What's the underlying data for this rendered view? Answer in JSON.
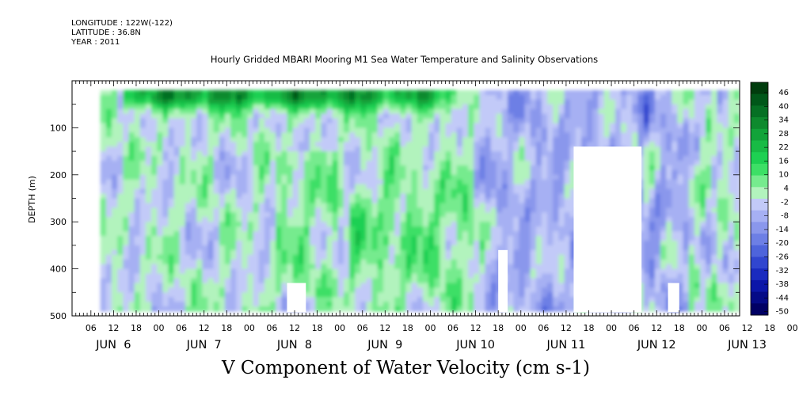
{
  "header": {
    "longitude": "LONGITUDE : 122W(-122)",
    "latitude": "LATITUDE : 36.8N",
    "year": "YEAR : 2011"
  },
  "title": "Hourly Gridded MBARI Mooring M1 Sea Water Temperature and Salinity Observations",
  "bottom_title": "V Component of Water Velocity (cm s-1)",
  "chart_data": {
    "type": "heatmap",
    "title": "Hourly Gridded MBARI Mooring M1 Sea Water Temperature and Salinity Observations",
    "xlabel": "",
    "ylabel": "DEPTH (m)",
    "colorbar_label": "V Component of Water Velocity (cm s-1)",
    "x_hour_ticks": [
      "06",
      "12",
      "18",
      "00",
      "06",
      "12",
      "18",
      "00",
      "06",
      "12",
      "18",
      "00",
      "06",
      "12",
      "18",
      "00",
      "06",
      "12",
      "18",
      "00",
      "06",
      "12",
      "18",
      "00",
      "06",
      "12",
      "18",
      "00",
      "06",
      "12",
      "18",
      "00"
    ],
    "x_day_labels": [
      "JUN  6",
      "JUN  7",
      "JUN  8",
      "JUN  9",
      "JUN 10",
      "JUN 11",
      "JUN 12",
      "JUN 13"
    ],
    "x_range_hours_from_jun6_0000": [
      1,
      178
    ],
    "y_ticks": [
      100,
      200,
      300,
      400,
      500
    ],
    "y_tick_labels": [
      "100",
      "200",
      "300",
      "400",
      "500"
    ],
    "ylim": [
      0,
      500
    ],
    "y_reversed": true,
    "data_depth_range": [
      20,
      490
    ],
    "data_time_range_hours": [
      8.5,
      178
    ],
    "colorbar_levels": [
      -50,
      -44,
      -38,
      -32,
      -26,
      -20,
      -14,
      -8,
      -2,
      4,
      10,
      16,
      22,
      28,
      34,
      40,
      46
    ],
    "colorbar_level_labels": [
      "46",
      "40",
      "34",
      "28",
      "22",
      "16",
      "10",
      "4",
      "-2",
      "-8",
      "-14",
      "-20",
      "-26",
      "-32",
      "-38",
      "-44",
      "-50"
    ],
    "colorbar_colors": [
      "#003c0d",
      "#005719",
      "#067024",
      "#0e8a2e",
      "#12a33a",
      "#18bb45",
      "#1ed052",
      "#3ddf66",
      "#76eb8e",
      "#b2f3bd",
      "#c2caf8",
      "#a6b0f3",
      "#8a97ec",
      "#6d7fe5",
      "#4e64db",
      "#3146cf",
      "#1a2bbf",
      "#0b16a8",
      "#040a87",
      "#000064"
    ],
    "colorbar_scale": "colors run from -50 at the bottom (dark blue) through near-zero (pale) to 46+ at the top (dark green)",
    "missing_data_regions": [
      {
        "time_start_h": 58,
        "time_end_h": 63,
        "depth_top": 430,
        "depth_bottom": 490
      },
      {
        "time_start_h": 114,
        "time_end_h": 116.5,
        "depth_top": 360,
        "depth_bottom": 490
      },
      {
        "time_start_h": 134,
        "time_end_h": 152,
        "depth_top": 140,
        "depth_bottom": 490
      },
      {
        "time_start_h": 159,
        "time_end_h": 162,
        "depth_top": 430,
        "depth_bottom": 490
      }
    ],
    "pattern": {
      "surface_layer": "strong positive (green) velocities near 20-60 m from JUN 6 12h to JUN 9 18h",
      "mid_period": "mostly negative (blue) velocities JUN 10 - JUN 11",
      "late_period": "alternating patches of weak positive and negative after JUN 12"
    }
  }
}
